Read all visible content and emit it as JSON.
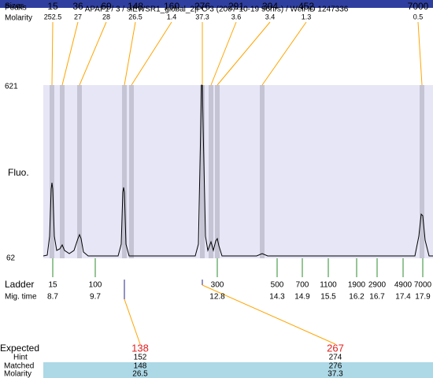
{
  "header": {
    "title": "APAF1 / 3 / siEWSR1_global_2|PC 3 (2007-10-19 96hrs) / Well ID 1247336"
  },
  "peaks": {
    "label_peaks": "Peaks",
    "label_sizes": "Sizes",
    "label_molarity": "Molarity",
    "items": [
      {
        "size": "15",
        "molarity": "252.5"
      },
      {
        "size": "36",
        "molarity": "27"
      },
      {
        "size": "69",
        "molarity": "28"
      },
      {
        "size": "148",
        "molarity": "26.5"
      },
      {
        "size": "160",
        "molarity": "1.4"
      },
      {
        "size": "276",
        "molarity": "37.3"
      },
      {
        "size": "291",
        "molarity": "3.6"
      },
      {
        "size": "304",
        "molarity": "3.4"
      },
      {
        "size": "452",
        "molarity": "1.3"
      },
      {
        "size": "7000",
        "molarity": "0.5"
      }
    ]
  },
  "yaxis": {
    "max": "621",
    "label": "Fluo.",
    "min": "62"
  },
  "ladder": {
    "label": "Ladder",
    "mig_label": "Mig. time",
    "items": [
      {
        "size": "15",
        "mig": "8.7"
      },
      {
        "size": "100",
        "mig": "9.7"
      },
      {
        "size": "300",
        "mig": "12.8"
      },
      {
        "size": "500",
        "mig": "14.3"
      },
      {
        "size": "700",
        "mig": "14.9"
      },
      {
        "size": "1100",
        "mig": "15.5"
      },
      {
        "size": "1900",
        "mig": "16.2"
      },
      {
        "size": "2900",
        "mig": "16.7"
      },
      {
        "size": "4900",
        "mig": "17.4"
      },
      {
        "size": "7000",
        "mig": "17.9"
      }
    ]
  },
  "expected": {
    "label": "Expected",
    "hint_label": "Hint",
    "matched_label": "Matched",
    "molarity_label": "Molarity",
    "items": [
      {
        "expected": "138",
        "hint": "152",
        "matched": "148",
        "molarity": "26.5"
      },
      {
        "expected": "267",
        "hint": "274",
        "matched": "276",
        "molarity": "37.3"
      }
    ]
  }
}
